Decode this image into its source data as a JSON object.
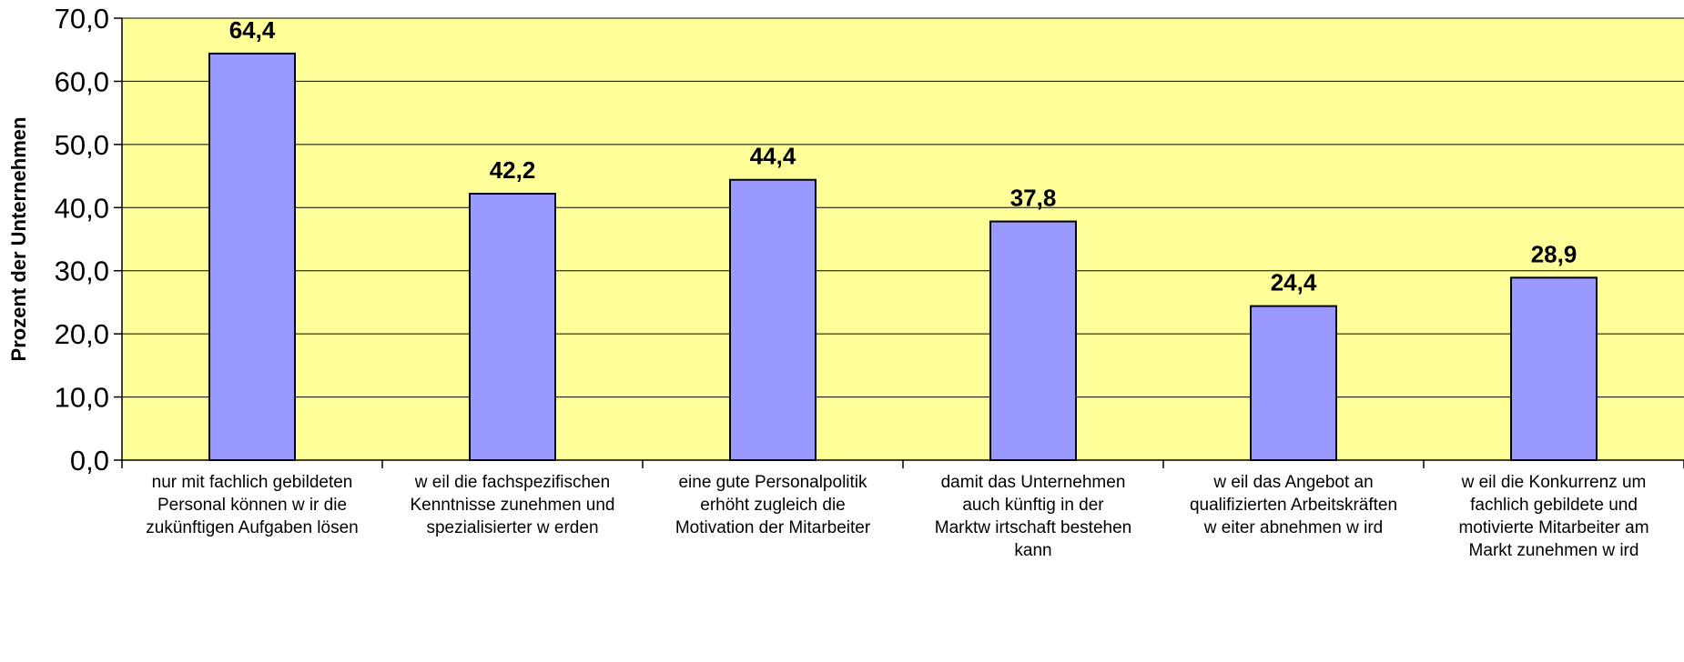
{
  "chart_data": {
    "type": "bar",
    "ylabel": "Prozent der Unternehmen",
    "xlabel": "",
    "ylim": [
      0,
      70
    ],
    "yticks": [
      "0,0",
      "10,0",
      "20,0",
      "30,0",
      "40,0",
      "50,0",
      "60,0",
      "70,0"
    ],
    "grid": true,
    "categories": [
      [
        "nur mit fachlich gebildeten",
        "Personal können w ir die",
        "zukünftigen Aufgaben lösen"
      ],
      [
        "w eil die fachspezifischen",
        "Kenntnisse zunehmen und",
        "spezialisierter w erden"
      ],
      [
        "eine gute Personalpolitik",
        "erhöht zugleich die",
        "Motivation der Mitarbeiter"
      ],
      [
        "damit das Unternehmen",
        "auch künftig in der",
        "Marktw irtschaft bestehen",
        "kann"
      ],
      [
        "w eil das Angebot an",
        "qualifizierten Arbeitskräften",
        "w eiter abnehmen w ird"
      ],
      [
        "w eil die Konkurrenz um",
        "fachlich gebildete und",
        "motivierte Mitarbeiter am",
        "Markt zunehmen w ird"
      ]
    ],
    "values": [
      64.4,
      42.2,
      44.4,
      37.8,
      24.4,
      28.9
    ],
    "value_labels": [
      "64,4",
      "42,2",
      "44,4",
      "37,8",
      "24,4",
      "28,9"
    ],
    "colors": {
      "plot_background": "#FFFF99",
      "bar_fill": "#9999FF",
      "bar_stroke": "#000000",
      "gridline": "#000000"
    }
  }
}
